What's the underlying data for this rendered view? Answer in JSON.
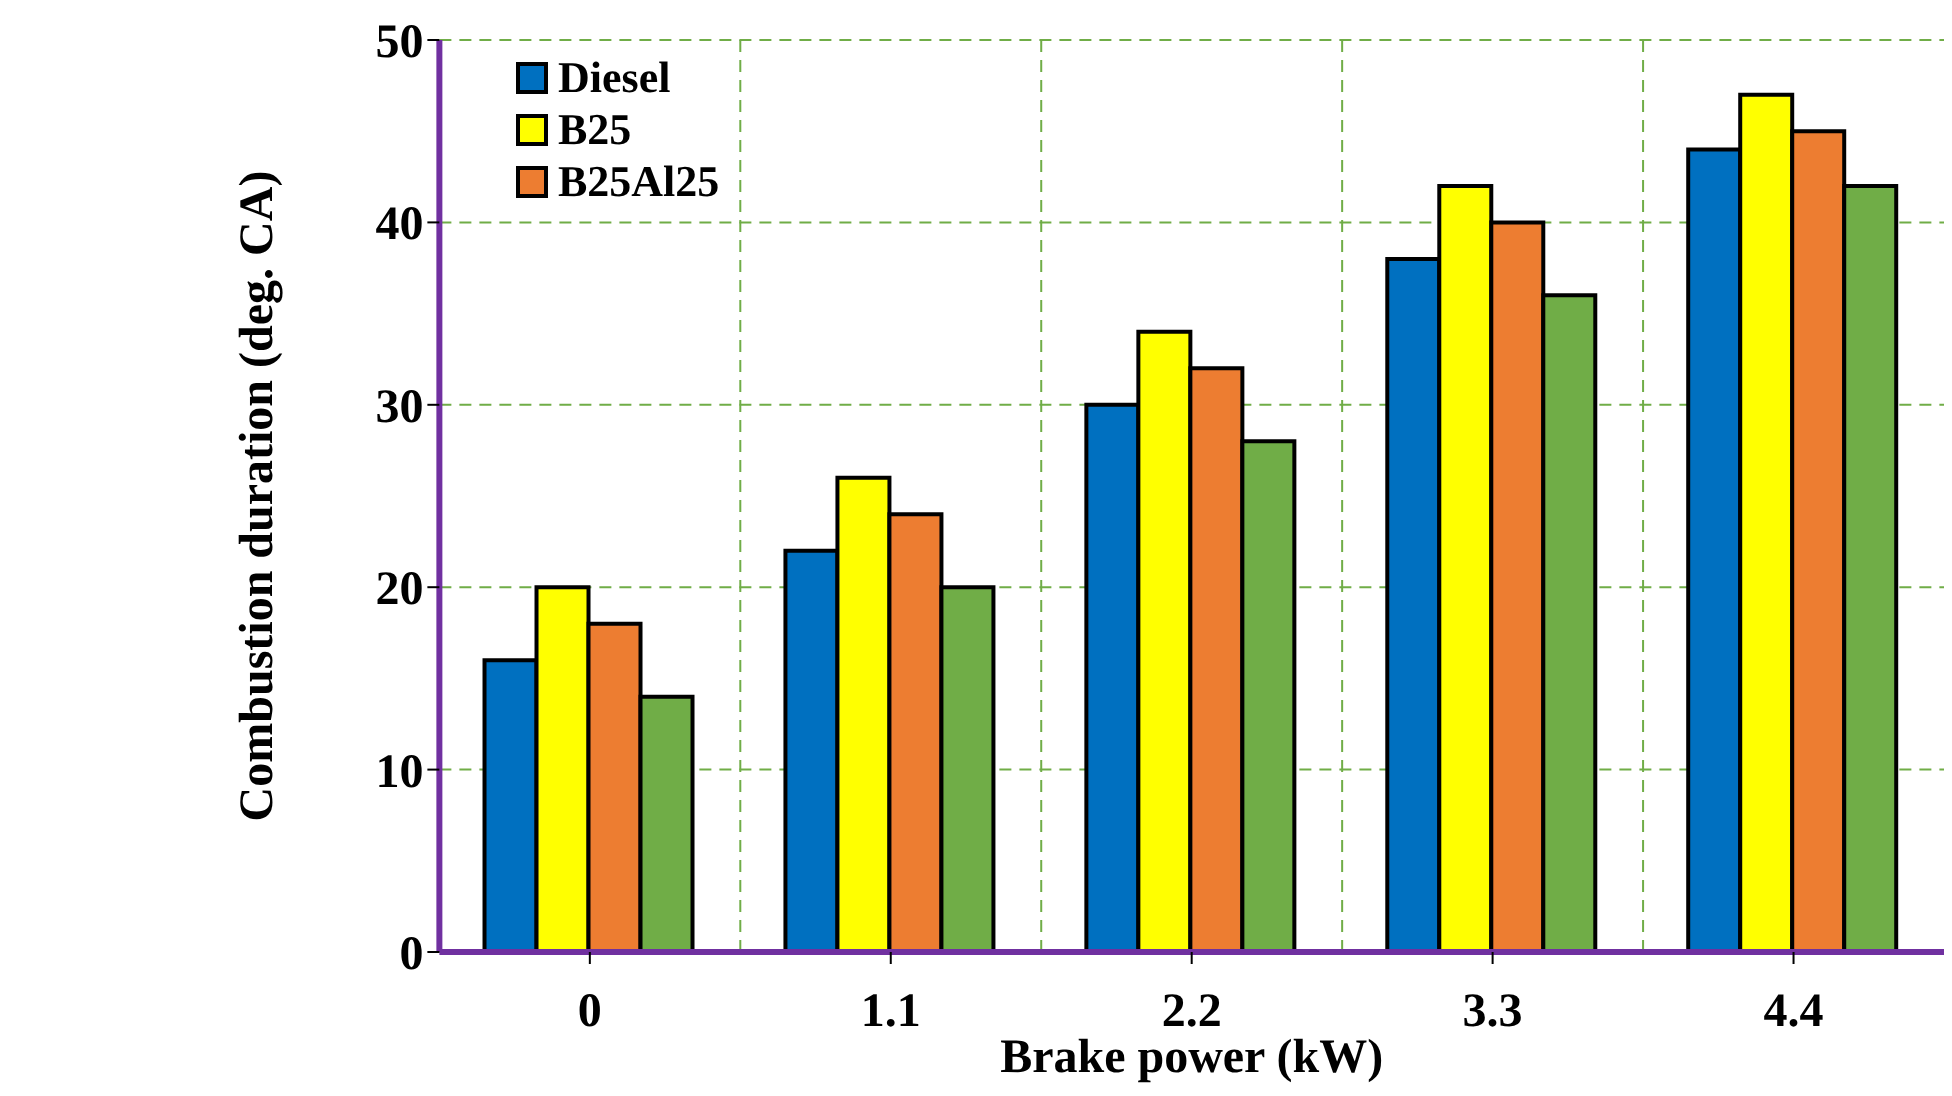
{
  "chart_data": {
    "type": "bar",
    "xlabel": "Brake power (kW)",
    "ylabel": "Combustion duration (deg. CA)",
    "categories": [
      "0",
      "1.1",
      "2.2",
      "3.3",
      "4.4"
    ],
    "series": [
      {
        "name": "Diesel",
        "color": "#0070c0",
        "values": [
          16,
          22,
          30,
          38,
          44
        ]
      },
      {
        "name": "B25",
        "color": "#ffff00",
        "values": [
          20,
          26,
          34,
          42,
          47
        ]
      },
      {
        "name": "B25Al25",
        "color": "#ed7d31",
        "values": [
          18,
          24,
          32,
          40,
          45
        ]
      },
      {
        "color": "#70ad47",
        "values": [
          14,
          20,
          28,
          36,
          42
        ]
      }
    ],
    "ylim": [
      0,
      50
    ],
    "yticks": [
      0,
      10,
      20,
      30,
      40,
      50
    ],
    "grid": true,
    "legend": "top left"
  }
}
